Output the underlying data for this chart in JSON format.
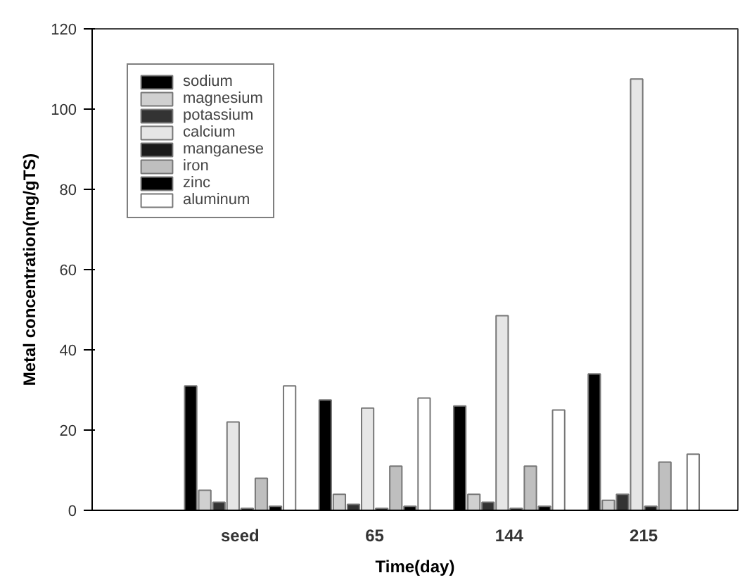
{
  "chart_data": {
    "type": "bar",
    "xlabel": "Time(day)",
    "ylabel": "Metal concentration(mg/gTS)",
    "categories": [
      "seed",
      "65",
      "144",
      "215"
    ],
    "series": [
      {
        "name": "sodium",
        "color": "#000000",
        "values": [
          31,
          27.5,
          26,
          34
        ]
      },
      {
        "name": "magnesium",
        "color": "#d0d0d0",
        "values": [
          5,
          4,
          4,
          2.5
        ]
      },
      {
        "name": "potassium",
        "color": "#333333",
        "values": [
          2,
          1.5,
          2,
          4
        ]
      },
      {
        "name": "calcium",
        "color": "#e6e6e6",
        "values": [
          22,
          25.5,
          48.5,
          107.5
        ]
      },
      {
        "name": "manganese",
        "color": "#1a1a1a",
        "values": [
          0.5,
          0.5,
          0.5,
          1
        ]
      },
      {
        "name": "iron",
        "color": "#bfbfbf",
        "values": [
          8,
          11,
          11,
          12
        ]
      },
      {
        "name": "zinc",
        "color": "#000000",
        "values": [
          1,
          1,
          1,
          null
        ]
      },
      {
        "name": "aluminum",
        "color": "#ffffff",
        "values": [
          31,
          28,
          25,
          14
        ]
      }
    ],
    "ylim": [
      0,
      120
    ],
    "yticks": [
      0,
      20,
      40,
      60,
      80,
      100,
      120
    ],
    "grid": false,
    "legend": "top left"
  }
}
